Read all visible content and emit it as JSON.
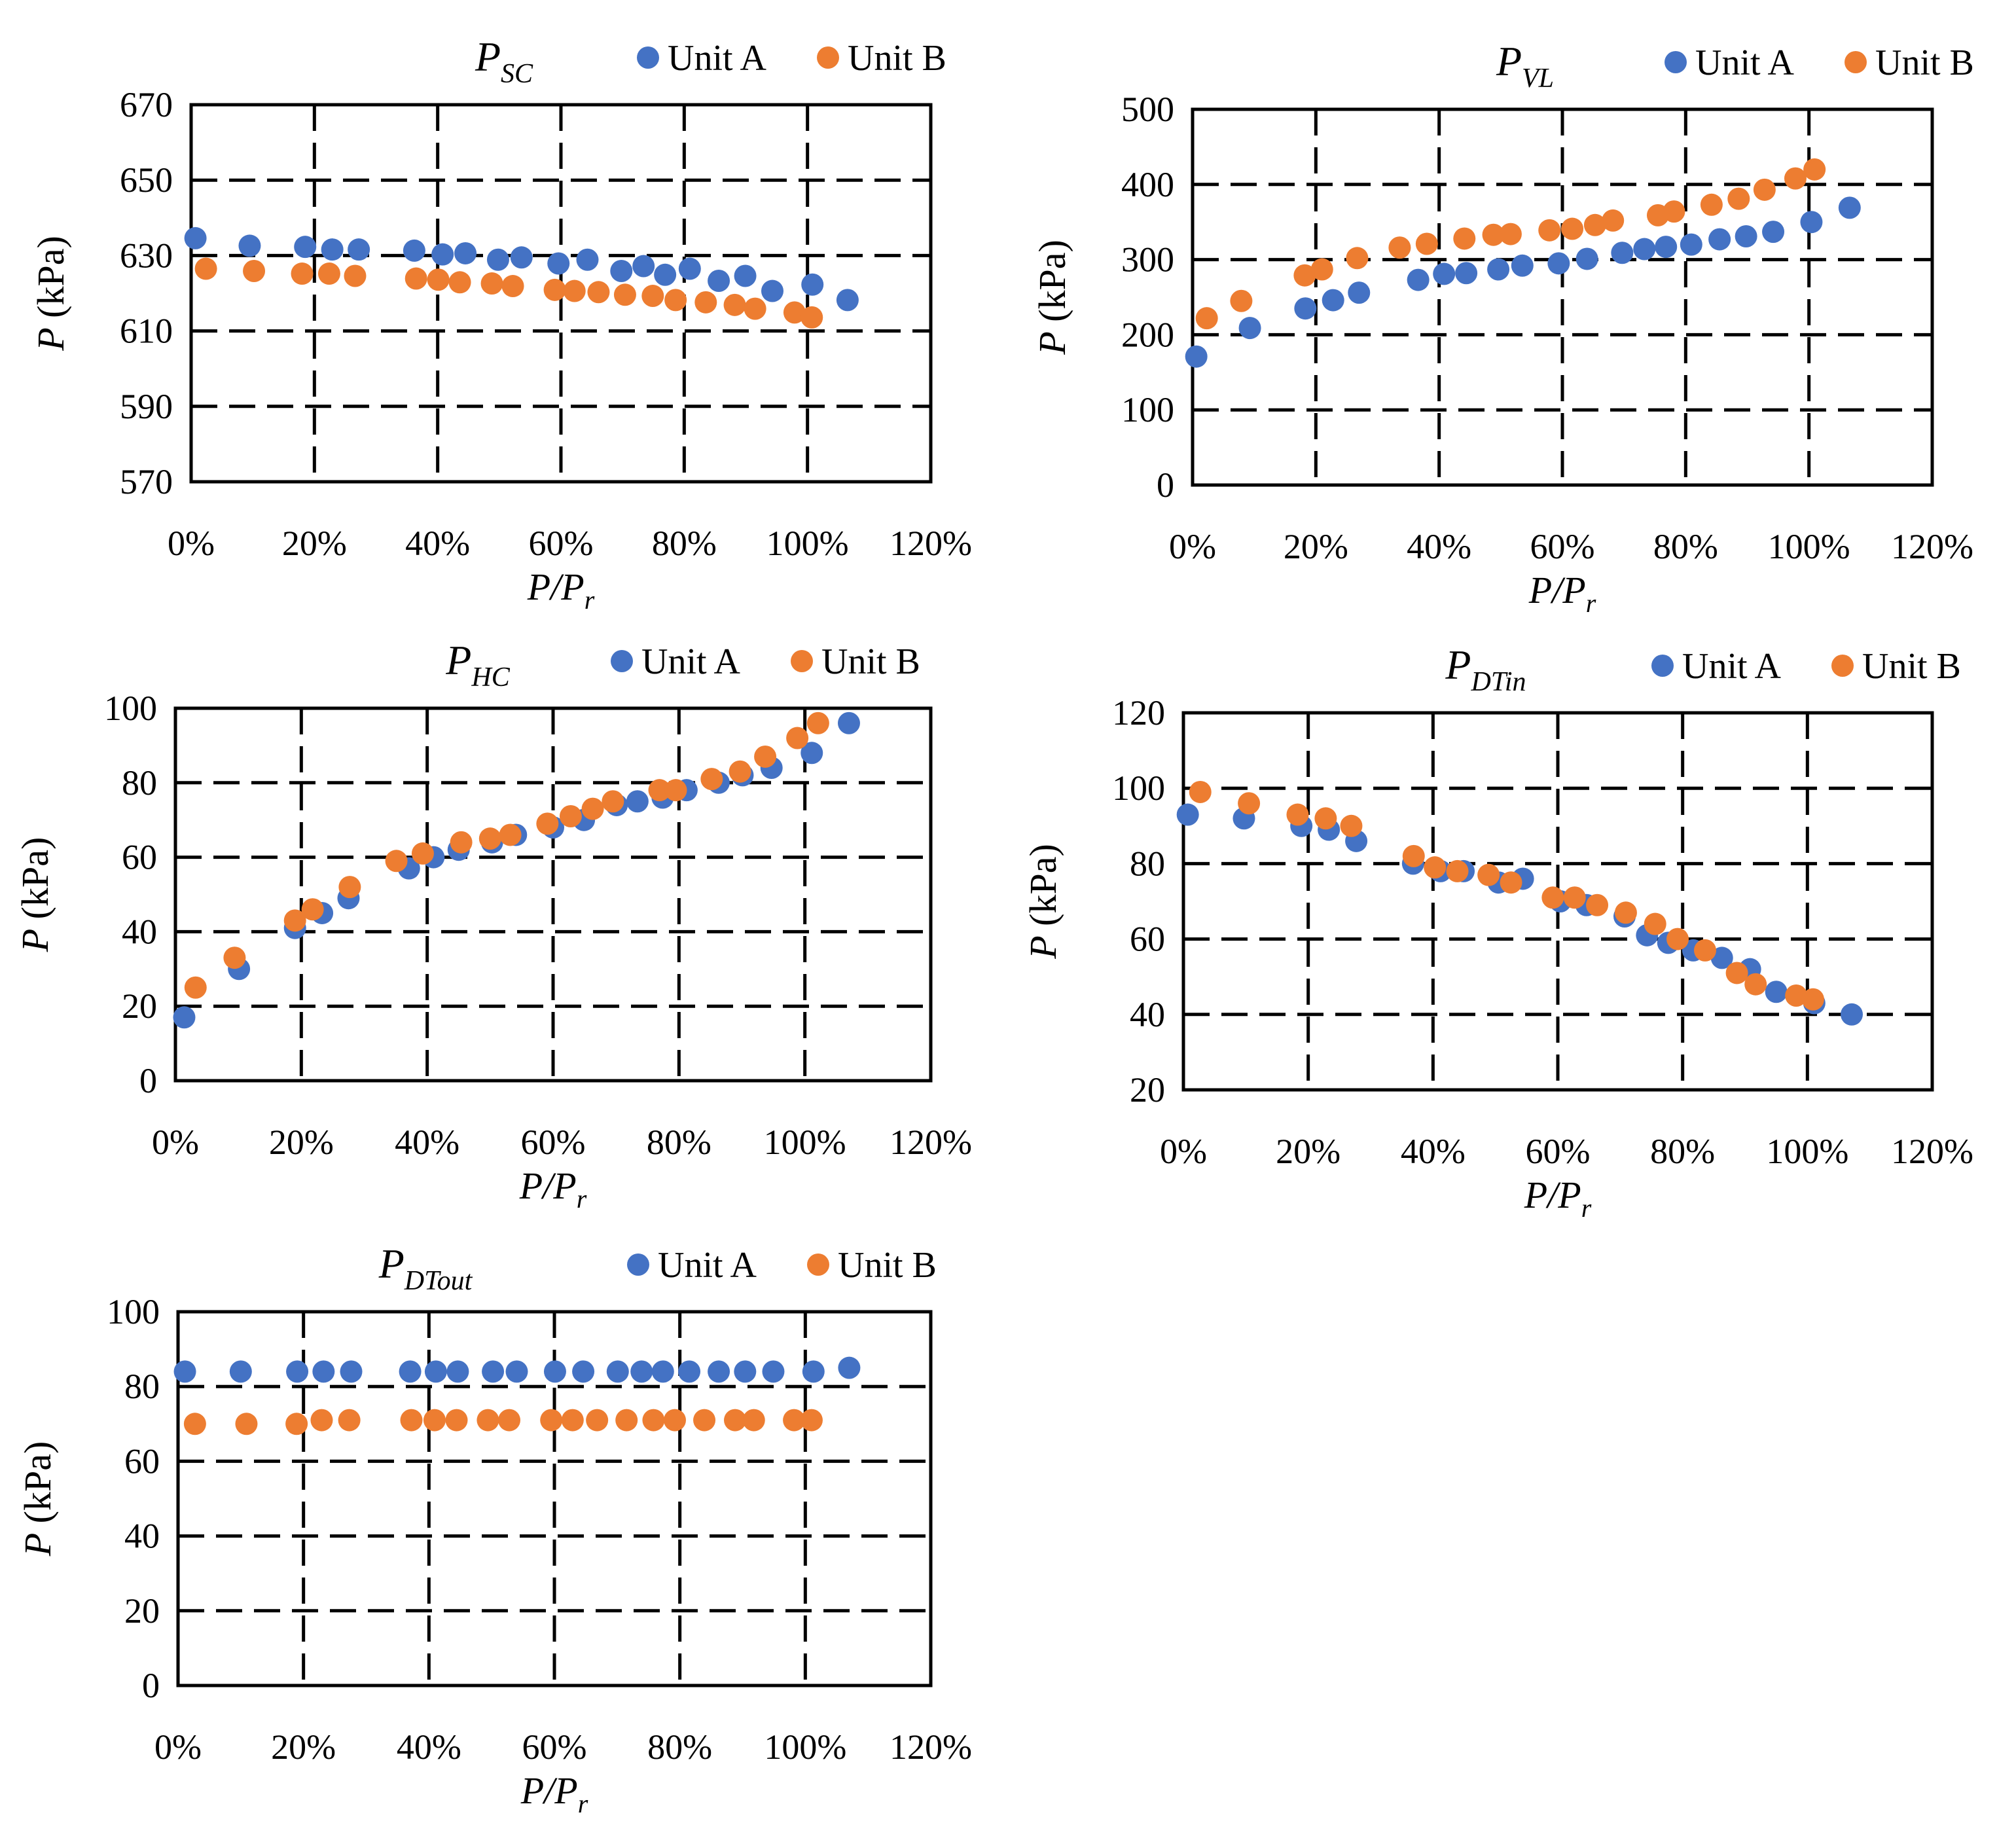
{
  "figure": {
    "legend_labels": [
      "Unit A",
      "Unit B"
    ],
    "colors": {
      "Unit A": "#4472C4",
      "Unit B": "#ED7D31"
    }
  },
  "chart_data": [
    {
      "type": "scatter",
      "title_main": "P",
      "title_sub": "SC",
      "xlabel_main": "P/P",
      "xlabel_sub": "r",
      "ylabel_italic": "P",
      "ylabel_rest": " (kPa)",
      "xlim": [
        0,
        120
      ],
      "ylim": [
        570,
        670
      ],
      "x_ticks": [
        0,
        20,
        40,
        60,
        80,
        100,
        120
      ],
      "x_tick_labels": [
        "0%",
        "20%",
        "40%",
        "60%",
        "80%",
        "100%",
        "120%"
      ],
      "y_ticks": [
        570,
        590,
        610,
        630,
        650,
        670
      ],
      "y_tick_labels": [
        "570",
        "590",
        "610",
        "630",
        "650",
        "670"
      ],
      "grid": "dashed",
      "legend": "top-right",
      "series": [
        {
          "name": "Unit A",
          "x": [
            0.7,
            9.5,
            18.5,
            22.9,
            27.2,
            36.2,
            40.8,
            44.5,
            49.8,
            53.6,
            59.6,
            64.3,
            69.8,
            73.4,
            76.9,
            80.9,
            85.6,
            89.9,
            94.3,
            100.8,
            106.5
          ],
          "y": [
            634.6,
            632.6,
            632.3,
            631.6,
            631.6,
            631.3,
            630.3,
            630.6,
            628.9,
            629.5,
            627.9,
            628.9,
            625.9,
            627.2,
            624.9,
            626.5,
            623.3,
            624.6,
            620.6,
            622.3,
            618.2
          ]
        },
        {
          "name": "Unit B",
          "x": [
            2.4,
            10.2,
            18.0,
            22.4,
            26.6,
            36.5,
            40.1,
            43.6,
            48.8,
            52.2,
            59.0,
            62.2,
            66.1,
            70.4,
            74.9,
            78.6,
            83.5,
            88.2,
            91.5,
            97.9,
            100.7
          ],
          "y": [
            626.5,
            625.9,
            625.2,
            625.2,
            624.6,
            623.9,
            623.6,
            622.9,
            622.6,
            621.9,
            620.9,
            620.6,
            620.3,
            619.6,
            619.3,
            618.2,
            617.6,
            616.9,
            615.9,
            614.9,
            613.6
          ]
        }
      ]
    },
    {
      "type": "scatter",
      "title_main": "P",
      "title_sub": "VL",
      "xlabel_main": "P/P",
      "xlabel_sub": "r",
      "ylabel_italic": "P",
      "ylabel_rest": " (kPa)",
      "xlim": [
        0,
        120
      ],
      "ylim": [
        0,
        500
      ],
      "x_ticks": [
        0,
        20,
        40,
        60,
        80,
        100,
        120
      ],
      "x_tick_labels": [
        "0%",
        "20%",
        "40%",
        "60%",
        "80%",
        "100%",
        "120%"
      ],
      "y_ticks": [
        0,
        100,
        200,
        300,
        400,
        500
      ],
      "y_tick_labels": [
        "0",
        "100",
        "200",
        "300",
        "400",
        "500"
      ],
      "grid": "dashed",
      "legend": "top-right",
      "series": [
        {
          "name": "Unit A",
          "x": [
            0.6,
            9.3,
            18.3,
            22.8,
            27.0,
            36.6,
            40.8,
            44.4,
            49.6,
            53.5,
            59.4,
            64.0,
            69.7,
            73.3,
            76.8,
            80.9,
            85.5,
            89.8,
            94.2,
            100.4,
            106.6
          ],
          "y": [
            171,
            209,
            235,
            246,
            256,
            273,
            281,
            282,
            287,
            292,
            295,
            301,
            309,
            314,
            317,
            320,
            327,
            331,
            337,
            350,
            369
          ]
        },
        {
          "name": "Unit B",
          "x": [
            2.3,
            7.9,
            18.2,
            21.0,
            26.7,
            33.6,
            38.0,
            44.1,
            48.8,
            51.6,
            57.9,
            61.6,
            65.3,
            68.2,
            75.5,
            78.1,
            84.2,
            88.6,
            92.8,
            97.8,
            100.9
          ],
          "y": [
            222,
            245,
            279,
            287,
            302,
            316,
            321,
            328,
            333,
            334,
            339,
            341,
            346,
            352,
            359,
            364,
            373,
            381,
            393,
            408,
            420
          ]
        }
      ]
    },
    {
      "type": "scatter",
      "title_main": "P",
      "title_sub": "HC",
      "xlabel_main": "P/P",
      "xlabel_sub": "r",
      "ylabel_italic": "P",
      "ylabel_rest": " (kPa)",
      "xlim": [
        0,
        120
      ],
      "ylim": [
        0,
        100
      ],
      "x_ticks": [
        0,
        20,
        40,
        60,
        80,
        100,
        120
      ],
      "x_tick_labels": [
        "0%",
        "20%",
        "40%",
        "60%",
        "80%",
        "100%",
        "120%"
      ],
      "y_ticks": [
        0,
        20,
        40,
        60,
        80,
        100
      ],
      "y_tick_labels": [
        "0",
        "20",
        "40",
        "60",
        "80",
        "100"
      ],
      "grid": "dashed",
      "legend": "top-right",
      "series": [
        {
          "name": "Unit A",
          "x": [
            1.4,
            10.1,
            19.0,
            23.3,
            27.5,
            37.1,
            41.0,
            45.0,
            50.3,
            54.1,
            60.0,
            64.9,
            70.1,
            73.4,
            77.4,
            81.2,
            86.3,
            90.1,
            94.7,
            101.1,
            107.0
          ],
          "y": [
            17,
            30,
            41,
            45,
            49,
            57,
            60,
            62,
            64,
            66,
            68,
            70,
            74,
            75,
            76,
            78,
            80,
            82,
            84,
            88,
            96
          ]
        },
        {
          "name": "Unit B",
          "x": [
            3.2,
            9.4,
            19.0,
            21.8,
            27.7,
            35.1,
            39.3,
            45.4,
            50.0,
            53.2,
            59.1,
            62.8,
            66.3,
            69.5,
            76.9,
            79.5,
            85.2,
            89.7,
            93.7,
            98.8,
            102.1
          ],
          "y": [
            25,
            33,
            43,
            46,
            52,
            59,
            61,
            64,
            65,
            66,
            69,
            71,
            73,
            75,
            78,
            78,
            81,
            83,
            87,
            92,
            96
          ]
        }
      ]
    },
    {
      "type": "scatter",
      "title_main": "P",
      "title_sub": "DTin",
      "xlabel_main": "P/P",
      "xlabel_sub": "r",
      "ylabel_italic": "P",
      "ylabel_rest": " (kPa)",
      "xlim": [
        0,
        120
      ],
      "ylim": [
        20,
        120
      ],
      "x_ticks": [
        0,
        20,
        40,
        60,
        80,
        100,
        120
      ],
      "x_tick_labels": [
        "0%",
        "20%",
        "40%",
        "60%",
        "80%",
        "100%",
        "120%"
      ],
      "y_ticks": [
        20,
        40,
        60,
        80,
        100,
        120
      ],
      "y_tick_labels": [
        "20",
        "40",
        "60",
        "80",
        "100",
        "120"
      ],
      "grid": "dashed",
      "legend": "top-right",
      "series": [
        {
          "name": "Unit A",
          "x": [
            0.7,
            9.7,
            18.9,
            23.3,
            27.7,
            36.8,
            41.2,
            44.9,
            50.5,
            54.4,
            60.4,
            64.6,
            70.7,
            74.3,
            77.7,
            81.7,
            86.3,
            90.8,
            95.0,
            101.1,
            107.1
          ],
          "y": [
            93,
            92,
            90,
            89,
            86,
            80,
            78,
            78,
            75,
            76,
            70,
            69,
            66,
            61,
            59,
            57,
            55,
            52,
            46,
            43,
            40
          ]
        },
        {
          "name": "Unit B",
          "x": [
            2.7,
            10.5,
            18.3,
            22.8,
            26.9,
            36.9,
            40.3,
            43.9,
            48.9,
            52.5,
            59.2,
            62.7,
            66.3,
            70.9,
            75.6,
            79.2,
            83.6,
            88.7,
            91.7,
            98.2,
            100.9
          ],
          "y": [
            99,
            96,
            93,
            92,
            90,
            82,
            79,
            78,
            77,
            75,
            71,
            71,
            69,
            67,
            64,
            60,
            57,
            51,
            48,
            45,
            44
          ]
        }
      ]
    },
    {
      "type": "scatter",
      "title_main": "P",
      "title_sub": "DTout",
      "xlabel_main": "P/P",
      "xlabel_sub": "r",
      "ylabel_italic": "P",
      "ylabel_rest": " (kPa)",
      "xlim": [
        0,
        120
      ],
      "ylim": [
        0,
        100
      ],
      "x_ticks": [
        0,
        20,
        40,
        60,
        80,
        100,
        120
      ],
      "x_tick_labels": [
        "0%",
        "20%",
        "40%",
        "60%",
        "80%",
        "100%",
        "120%"
      ],
      "y_ticks": [
        0,
        20,
        40,
        60,
        80,
        100
      ],
      "y_tick_labels": [
        "0",
        "20",
        "40",
        "60",
        "80",
        "100"
      ],
      "grid": "dashed",
      "legend": "top-right",
      "series": [
        {
          "name": "Unit A",
          "x": [
            1.1,
            10.0,
            19.0,
            23.2,
            27.6,
            37.0,
            41.1,
            44.6,
            50.2,
            54.0,
            60.1,
            64.6,
            70.1,
            73.9,
            77.3,
            81.5,
            86.2,
            90.4,
            94.9,
            101.3,
            107.0
          ],
          "y": [
            84,
            84,
            84,
            84,
            84,
            84,
            84,
            84,
            84,
            84,
            84,
            84,
            84,
            84,
            84,
            84,
            84,
            84,
            84,
            84,
            85
          ]
        },
        {
          "name": "Unit B",
          "x": [
            2.7,
            10.9,
            18.9,
            22.9,
            27.3,
            37.2,
            40.9,
            44.4,
            49.4,
            52.8,
            59.5,
            62.9,
            66.8,
            71.5,
            75.8,
            79.2,
            83.9,
            88.8,
            91.8,
            98.2,
            101.0
          ],
          "y": [
            70,
            70,
            70,
            71,
            71,
            71,
            71,
            71,
            71,
            71,
            71,
            71,
            71,
            71,
            71,
            71,
            71,
            71,
            71,
            71,
            71
          ]
        }
      ]
    }
  ]
}
